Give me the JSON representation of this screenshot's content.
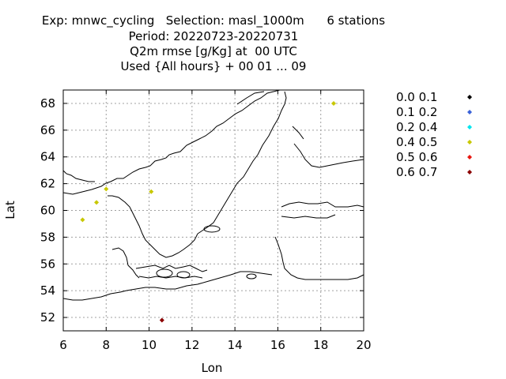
{
  "chart_data": {
    "type": "scatter",
    "title_lines": [
      "Exp: mnwc_cycling   Selection: masl_1000m      6 stations",
      "Period: 20220723-20220731",
      "Q2m rmse [g/Kg] at  00 UTC",
      "Used {All hours} + 00 01 ... 09"
    ],
    "xlabel": "Lon",
    "ylabel": "Lat",
    "xlim": [
      6,
      20
    ],
    "ylim": [
      51,
      69
    ],
    "xticks": [
      6,
      8,
      10,
      12,
      14,
      16,
      18,
      20
    ],
    "yticks": [
      52,
      54,
      56,
      58,
      60,
      62,
      64,
      66,
      68
    ],
    "grid": true,
    "legend_position": "right",
    "legend": [
      {
        "label": "0.0 0.1",
        "color": "#000000"
      },
      {
        "label": "0.1 0.2",
        "color": "#3a62d8"
      },
      {
        "label": "0.2 0.4",
        "color": "#00e5ee"
      },
      {
        "label": "0.4 0.5",
        "color": "#c8c800"
      },
      {
        "label": "0.5 0.6",
        "color": "#e8160f"
      },
      {
        "label": "0.6 0.7",
        "color": "#8b0000"
      }
    ],
    "points": [
      {
        "lon": 18.6,
        "lat": 68.0,
        "class": 3
      },
      {
        "lon": 8.0,
        "lat": 61.6,
        "class": 3
      },
      {
        "lon": 10.1,
        "lat": 61.4,
        "class": 3
      },
      {
        "lon": 7.55,
        "lat": 60.6,
        "class": 3
      },
      {
        "lon": 6.9,
        "lat": 59.3,
        "class": 3
      },
      {
        "lon": 10.6,
        "lat": 51.8,
        "class": 5
      }
    ]
  }
}
